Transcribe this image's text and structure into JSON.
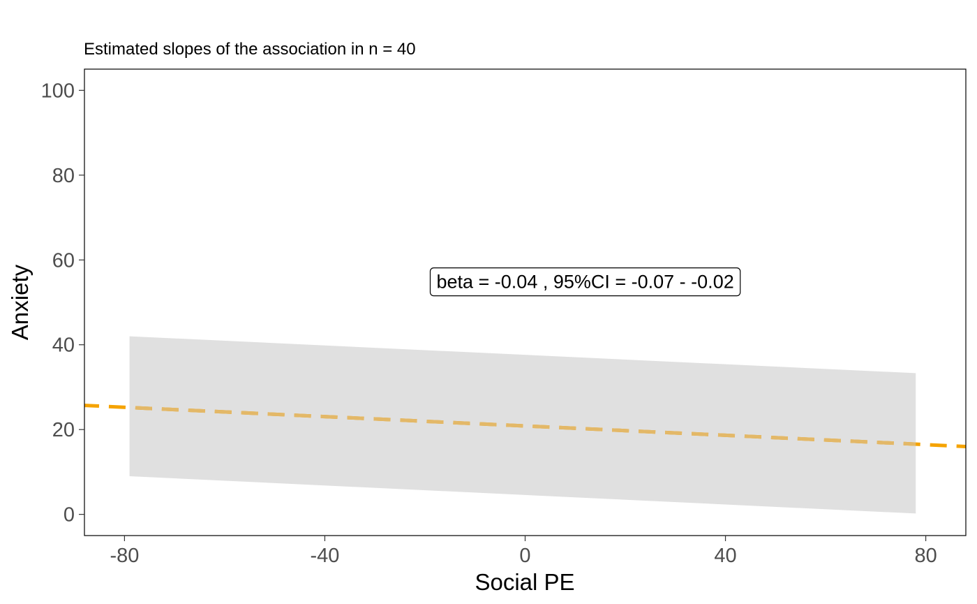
{
  "chart_data": {
    "type": "line",
    "title": "",
    "subtitle": "Estimated slopes of the association in n =  40",
    "xlabel": "Social PE",
    "ylabel": "Anxiety",
    "xlim": [
      -88,
      88
    ],
    "ylim": [
      -5,
      105
    ],
    "x_ticks": [
      -80,
      -40,
      0,
      40,
      80
    ],
    "y_ticks": [
      0,
      20,
      40,
      60,
      80,
      100
    ],
    "x_tick_labels": [
      "-80",
      "-40",
      "0",
      "40",
      "80"
    ],
    "y_tick_labels": [
      "0",
      "20",
      "40",
      "60",
      "80",
      "100"
    ],
    "grid": false,
    "confidence_band": {
      "x": [
        -79,
        78
      ],
      "upper": [
        42,
        33.3
      ],
      "lower": [
        9,
        0.2
      ]
    },
    "series": [
      {
        "style": "dashed",
        "x": [
          -88,
          88
        ],
        "y": [
          25.7,
          16.0
        ]
      }
    ],
    "annotation": {
      "text": "beta = -0.04 , 95%CI = -0.07 - -0.02",
      "x": 12,
      "y": 55
    },
    "colors": {
      "line": "#f5a300",
      "band": "#e0e0e0",
      "line_in_band": "#e3b868"
    }
  }
}
